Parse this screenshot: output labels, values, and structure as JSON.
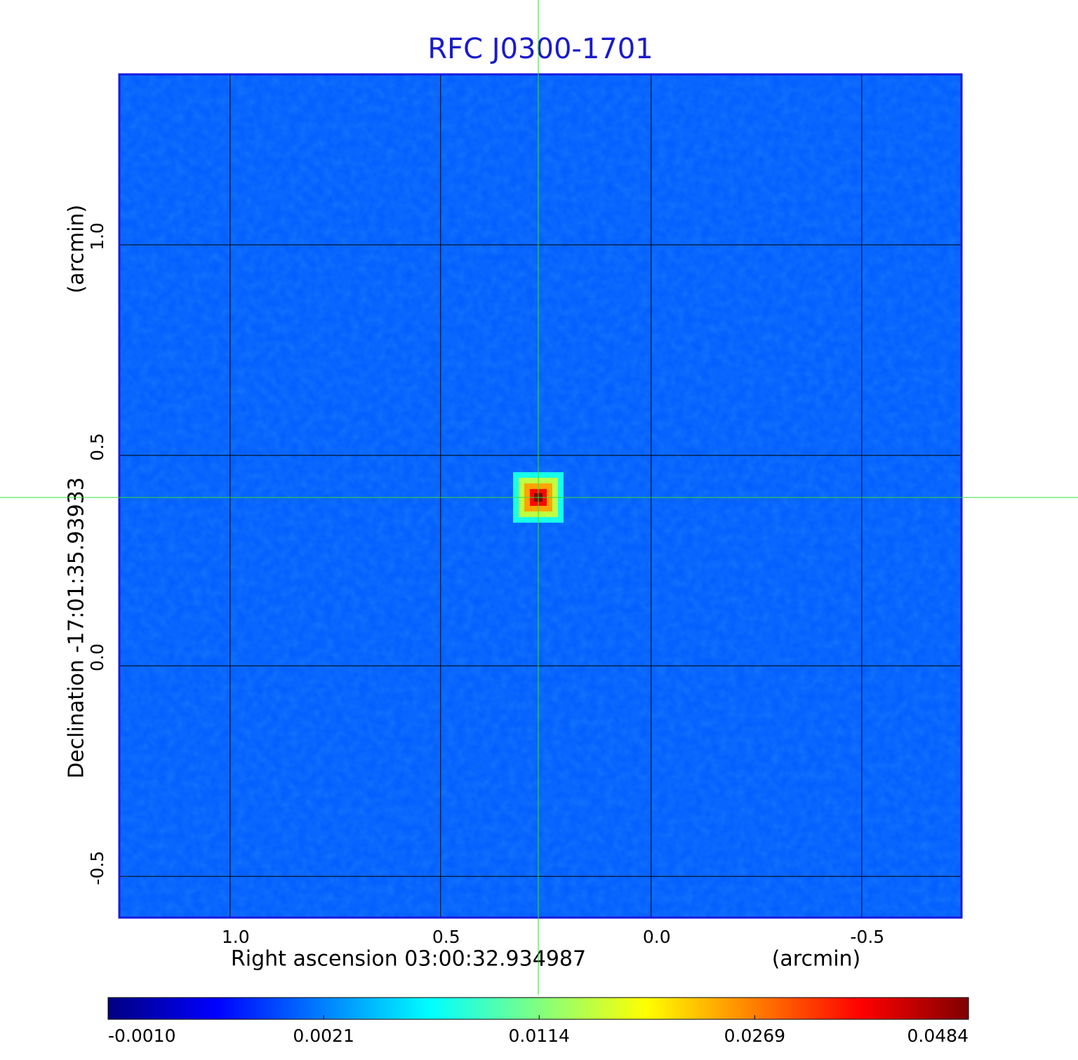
{
  "chart_data": {
    "type": "image",
    "title": "RFC J0300-1701",
    "xlabel": "Right ascension  03:00:32.934987",
    "xunit": "(arcmin)",
    "ylabel": "Declination  -17:01:35.93933",
    "yunit": "(arcmin)",
    "xlim": [
      1.263,
      -0.737
    ],
    "ylim": [
      -0.598,
      1.405
    ],
    "xticks": [
      {
        "value": 1,
        "label": "1.0"
      },
      0.5,
      {
        "value": 0,
        "label": "0.0"
      },
      -0.5
    ],
    "yticks": [
      {
        "value": 1,
        "label": "1.0"
      },
      0.5,
      {
        "value": 0,
        "label": "0.0"
      },
      -0.5
    ],
    "grid": true,
    "colormap": "jet",
    "background_value": 0.0013,
    "crosshair": {
      "x": 0.268,
      "y": 0.4,
      "color": "#33dd33"
    },
    "source": {
      "x": 0.268,
      "y": 0.4,
      "peak": 0.0484
    },
    "colorbar": {
      "lim": [
        -0.001,
        0.0484
      ],
      "scale": "sqrt",
      "ticks": [
        {
          "value": -0.001,
          "label": "-0.0010"
        },
        {
          "value": 0.0021,
          "label": "0.0021"
        },
        {
          "value": 0.0114,
          "label": "0.0114"
        },
        {
          "value": 0.0269,
          "label": "0.0269"
        },
        {
          "value": 0.0484,
          "label": "0.0484"
        }
      ]
    }
  }
}
